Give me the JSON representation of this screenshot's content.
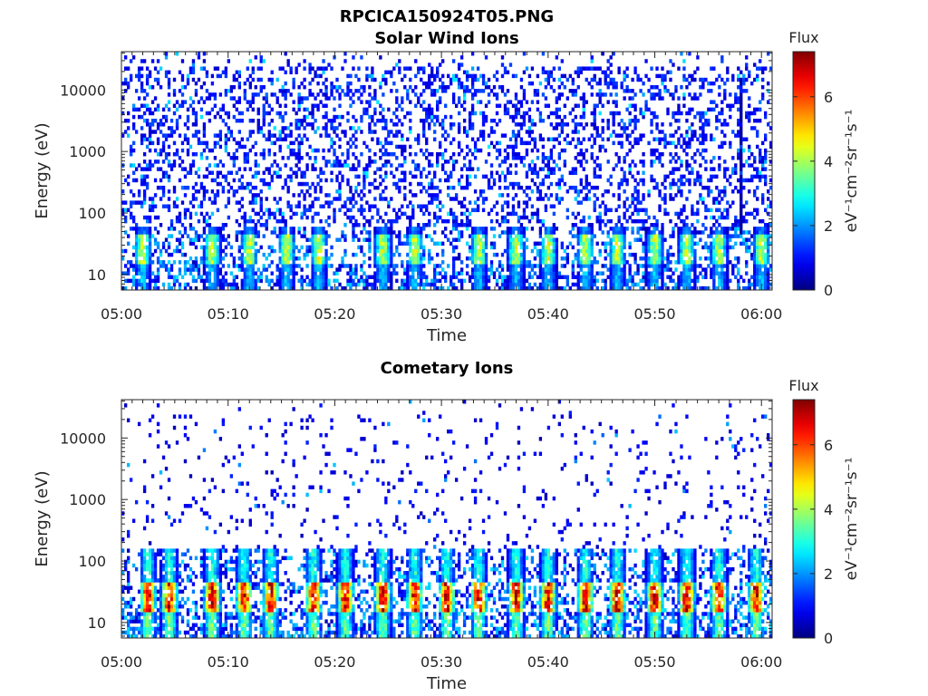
{
  "figure": {
    "title": "RPCICA150924T05.PNG"
  },
  "chart_data": [
    {
      "type": "heatmap",
      "title": "Solar Wind Ions",
      "xlabel": "Time",
      "ylabel": "Energy (eV)",
      "x_ticks": [
        "05:00",
        "05:10",
        "05:20",
        "05:30",
        "05:40",
        "05:50",
        "06:00"
      ],
      "x_range_minutes": [
        0,
        61
      ],
      "y_ticks": [
        10,
        100,
        1000,
        10000
      ],
      "y_tick_labels": [
        "10",
        "100",
        "1000",
        "10000"
      ],
      "y_scale": "log",
      "y_range": [
        5.6,
        42000
      ],
      "colorbar": {
        "title": "Flux",
        "label": "eV⁻¹cm⁻²sr⁻¹s⁻¹",
        "range": [
          0,
          7.4
        ],
        "ticks": [
          0,
          2,
          4,
          6
        ],
        "tick_labels": [
          "0",
          "2",
          "4",
          "6"
        ],
        "colormap": "jet"
      },
      "pattern": {
        "low_energy_band_eV": [
          5.6,
          60
        ],
        "low_energy_flux_peak": 4.5,
        "high_energy_sparse_flux": 1.0,
        "high_energy_fill_fraction": 0.3,
        "burst_minutes": [
          2,
          8.5,
          12,
          15.5,
          18.5,
          24.5,
          27.5,
          33.5,
          37,
          40,
          43.5,
          46.5,
          50,
          53,
          56,
          60
        ],
        "vertical_streak_minute": 58
      }
    },
    {
      "type": "heatmap",
      "title": "Cometary Ions",
      "xlabel": "Time",
      "ylabel": "Energy (eV)",
      "x_ticks": [
        "05:00",
        "05:10",
        "05:20",
        "05:30",
        "05:40",
        "05:50",
        "06:00"
      ],
      "x_range_minutes": [
        0,
        61
      ],
      "y_ticks": [
        10,
        100,
        1000,
        10000
      ],
      "y_tick_labels": [
        "10",
        "100",
        "1000",
        "10000"
      ],
      "y_scale": "log",
      "y_range": [
        5.6,
        42000
      ],
      "colorbar": {
        "title": "Flux",
        "label": "eV⁻¹cm⁻²sr⁻¹s⁻¹",
        "range": [
          0,
          7.4
        ],
        "ticks": [
          0,
          2,
          4,
          6
        ],
        "tick_labels": [
          "0",
          "2",
          "4",
          "6"
        ],
        "colormap": "jet"
      },
      "pattern": {
        "low_energy_band_eV": [
          5.6,
          150
        ],
        "low_energy_flux_peak": 7.0,
        "high_energy_sparse_flux": 0.8,
        "high_energy_fill_fraction": 0.06,
        "burst_minutes": [
          2.5,
          4.5,
          8.5,
          11.5,
          14,
          18,
          21,
          24.5,
          27.5,
          30.5,
          33.5,
          37,
          40,
          43.5,
          46.5,
          50,
          53,
          56,
          59.5
        ]
      }
    }
  ]
}
